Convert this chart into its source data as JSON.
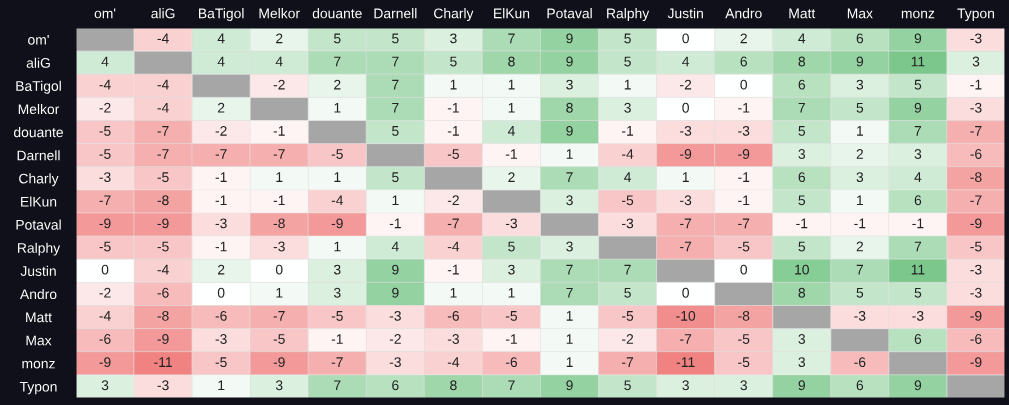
{
  "chart_data": {
    "type": "heatmap",
    "categories": [
      "om'",
      "aliG",
      "BaTigol",
      "Melkor",
      "douante",
      "Darnell",
      "Charly",
      "ElKun",
      "Potaval",
      "Ralphy",
      "Justin",
      "Andro",
      "Matt",
      "Max",
      "monz",
      "Typon"
    ],
    "y_categories": [
      "om'",
      "aliG",
      "BaTigol",
      "Melkor",
      "douante",
      "Darnell",
      "Charly",
      "ElKun",
      "Potaval",
      "Ralphy",
      "Justin",
      "Andro",
      "Matt",
      "Max",
      "monz",
      "Typon"
    ],
    "cells": [
      [
        null,
        -4,
        4,
        2,
        5,
        5,
        3,
        7,
        9,
        5,
        0,
        2,
        4,
        6,
        9,
        -3
      ],
      [
        4,
        null,
        4,
        4,
        7,
        7,
        5,
        8,
        9,
        5,
        4,
        6,
        8,
        9,
        11,
        3
      ],
      [
        -4,
        -4,
        null,
        -2,
        2,
        7,
        1,
        1,
        3,
        1,
        -2,
        0,
        6,
        3,
        5,
        -1
      ],
      [
        -2,
        -4,
        2,
        null,
        1,
        7,
        -1,
        1,
        8,
        3,
        0,
        -1,
        7,
        5,
        9,
        -3
      ],
      [
        -5,
        -7,
        -2,
        -1,
        null,
        5,
        -1,
        4,
        9,
        -1,
        -3,
        -3,
        5,
        1,
        7,
        -7
      ],
      [
        -5,
        -7,
        -7,
        -7,
        -5,
        null,
        -5,
        -1,
        1,
        -4,
        -9,
        -9,
        3,
        2,
        3,
        -6
      ],
      [
        -3,
        -5,
        -1,
        1,
        1,
        5,
        null,
        2,
        7,
        4,
        1,
        -1,
        6,
        3,
        4,
        -8
      ],
      [
        -7,
        -8,
        -1,
        -1,
        -4,
        1,
        -2,
        null,
        3,
        -5,
        -3,
        -1,
        5,
        1,
        6,
        -7
      ],
      [
        -9,
        -9,
        -3,
        -8,
        -9,
        -1,
        -7,
        -3,
        null,
        -3,
        -7,
        -7,
        -1,
        -1,
        -1,
        -9
      ],
      [
        -5,
        -5,
        -1,
        -3,
        1,
        4,
        -4,
        5,
        3,
        null,
        -7,
        -5,
        5,
        2,
        7,
        -5
      ],
      [
        0,
        -4,
        2,
        0,
        3,
        9,
        -1,
        3,
        7,
        7,
        null,
        0,
        10,
        7,
        11,
        -3
      ],
      [
        -2,
        -6,
        0,
        1,
        3,
        9,
        1,
        1,
        7,
        5,
        0,
        null,
        8,
        5,
        5,
        -3
      ],
      [
        -4,
        -8,
        -6,
        -7,
        -5,
        -3,
        -6,
        -5,
        1,
        -5,
        -10,
        -8,
        null,
        -3,
        -3,
        -9
      ],
      [
        -6,
        -9,
        -3,
        -5,
        -1,
        -2,
        -3,
        -1,
        1,
        -2,
        -7,
        -5,
        3,
        null,
        6,
        -6
      ],
      [
        -9,
        -11,
        -5,
        -9,
        -7,
        -3,
        -4,
        -6,
        1,
        -7,
        -11,
        -5,
        3,
        -6,
        null,
        -9
      ],
      [
        3,
        -3,
        1,
        3,
        7,
        6,
        8,
        7,
        9,
        5,
        3,
        3,
        9,
        6,
        9,
        null
      ]
    ],
    "colors": [
      "#f08282",
      "#ffffff",
      "#7cc88c"
    ],
    "data_labels": true
  }
}
